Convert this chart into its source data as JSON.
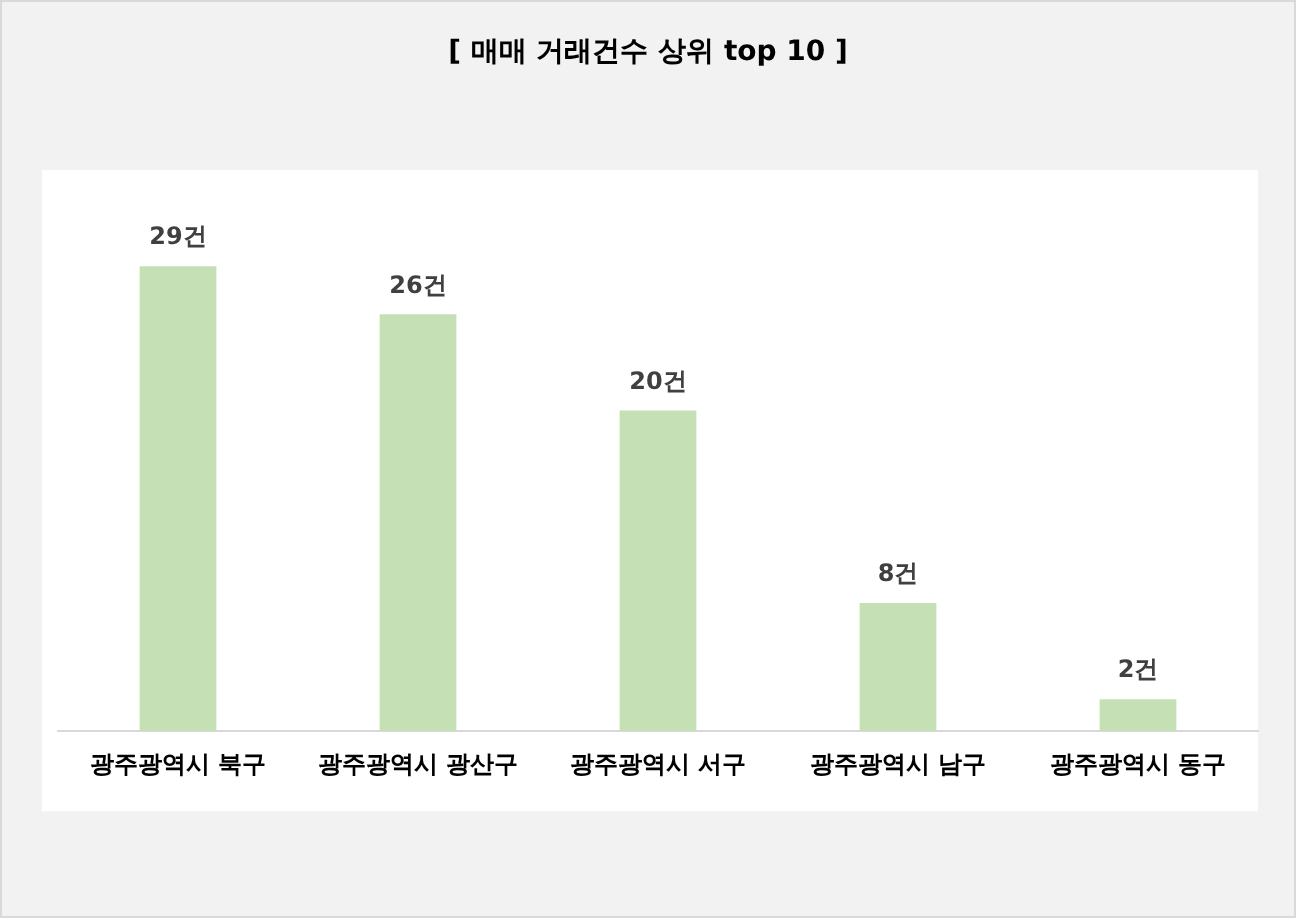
{
  "chart_data": {
    "type": "bar",
    "title": "[ 매매 거래건수 상위 top 10 ]",
    "categories": [
      "광주광역시 북구",
      "광주광역시 광산구",
      "광주광역시 서구",
      "광주광역시 남구",
      "광주광역시 동구"
    ],
    "values": [
      29,
      26,
      20,
      8,
      2
    ],
    "value_labels": [
      "29건",
      "26건",
      "20건",
      "8건",
      "2건"
    ],
    "color": "#c5e0b4",
    "relative": false,
    "grid": false,
    "legend": false
  }
}
